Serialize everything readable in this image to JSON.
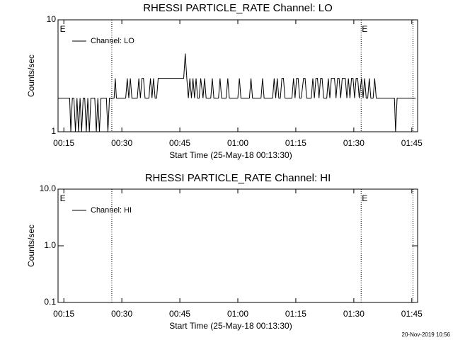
{
  "chart_data": [
    {
      "type": "line",
      "title": "RHESSI PARTICLE_RATE Channel: LO",
      "xlabel": "Start Time (25-May-18 00:13:30)",
      "ylabel": "Counts/sec",
      "log_y": true,
      "xlim": [
        13.5,
        106.5
      ],
      "ylim": [
        1,
        10
      ],
      "yticks": [
        1,
        10
      ],
      "xticks": [
        {
          "value": 15,
          "label": "00:15"
        },
        {
          "value": 30,
          "label": "00:30"
        },
        {
          "value": 45,
          "label": "00:45"
        },
        {
          "value": 60,
          "label": "01:00"
        },
        {
          "value": 75,
          "label": "01:15"
        },
        {
          "value": 90,
          "label": "01:30"
        },
        {
          "value": 105,
          "label": "01:45"
        }
      ],
      "vlines": [
        27.4,
        91.9,
        105.3
      ],
      "annotations": [
        {
          "x": 13.8,
          "text": "E"
        },
        {
          "x": 91.9,
          "text": "E"
        }
      ],
      "legend": "upper left",
      "series": [
        {
          "name": "Channel: LO",
          "color": "#000000",
          "x": [
            13.5,
            16.5,
            16.8,
            17.2,
            17.6,
            18,
            18.4,
            18.8,
            19.2,
            19.6,
            20,
            20.4,
            20.8,
            21.2,
            21.6,
            22,
            23,
            23.4,
            23.8,
            24.2,
            24.6,
            25,
            26,
            26.4,
            26.8,
            27.2,
            28,
            28.3,
            28.6,
            29,
            31,
            31.4,
            31.8,
            32.2,
            32.6,
            33,
            34,
            34.4,
            34.8,
            35.2,
            35.6,
            36,
            37,
            37.4,
            37.8,
            38.2,
            38.6,
            39,
            39.4,
            40,
            46,
            46.4,
            46.8,
            47.2,
            47.6,
            48,
            48.4,
            48.8,
            49.2,
            49.6,
            50,
            50.4,
            51,
            51.4,
            51.8,
            52.2,
            53,
            53.4,
            53.8,
            54.2,
            55,
            55.4,
            55.8,
            56.2,
            57,
            57.4,
            57.8,
            58.2,
            60,
            60.4,
            60.8,
            61.2,
            63,
            63.4,
            63.8,
            64.2,
            66,
            66.4,
            66.8,
            67.2,
            69,
            69.4,
            69.8,
            70.2,
            70.6,
            71,
            71.4,
            71.8,
            72.2,
            72.6,
            74,
            74.4,
            74.8,
            75.2,
            75.6,
            76,
            76.4,
            77,
            77.4,
            77.8,
            78.2,
            79,
            79.4,
            79.8,
            80.2,
            80.6,
            81,
            81.4,
            81.8,
            82.2,
            83,
            83.4,
            83.8,
            84.2,
            84.6,
            85,
            85.4,
            85.8,
            86.2,
            86.6,
            87,
            87.4,
            87.8,
            88.2,
            88.6,
            89,
            89.4,
            89.8,
            90.2,
            90.6,
            91,
            91.4,
            92,
            92.4,
            92.8,
            93.2,
            93.6,
            94,
            94.4,
            95,
            95.4,
            95.8,
            96.2,
            100.5,
            100.8,
            101.2,
            106
          ],
          "values": [
            2,
            2,
            1,
            2,
            2,
            1,
            2,
            1,
            2,
            1,
            2,
            2,
            1,
            2,
            1,
            2,
            2,
            1,
            2,
            1,
            2,
            2,
            2,
            1,
            2,
            2,
            2,
            3,
            2,
            2,
            2,
            3,
            2,
            3,
            2,
            2,
            2,
            3,
            2,
            3,
            3,
            2,
            2,
            3,
            2,
            3,
            2,
            2,
            3,
            3,
            3,
            5,
            3,
            2,
            3,
            2,
            3,
            2,
            3,
            2,
            2,
            3,
            2,
            3,
            2,
            2,
            2,
            3,
            2,
            2,
            2,
            3,
            2,
            2,
            2,
            3,
            2,
            2,
            2,
            3,
            2,
            2,
            2,
            3,
            2,
            2,
            2,
            3,
            2,
            2,
            2,
            3,
            2,
            3,
            2,
            2,
            3,
            3,
            2,
            2,
            2,
            3,
            2,
            3,
            3,
            2,
            2,
            3,
            3,
            2,
            2,
            2,
            3,
            2,
            3,
            3,
            2,
            3,
            3,
            2,
            2,
            3,
            2,
            3,
            3,
            3,
            2,
            3,
            3,
            2,
            3,
            3,
            3,
            2,
            3,
            2,
            3,
            3,
            2,
            3,
            3,
            2,
            3,
            2,
            3,
            2,
            2,
            3,
            2,
            2,
            3,
            2,
            2,
            2,
            1,
            2,
            2
          ]
        }
      ]
    },
    {
      "type": "line",
      "title": "RHESSI PARTICLE_RATE Channel: HI",
      "xlabel": "Start Time (25-May-18 00:13:30)",
      "ylabel": "Counts/sec",
      "log_y": true,
      "xlim": [
        13.5,
        106.5
      ],
      "ylim": [
        0.1,
        10
      ],
      "yticks": [
        0.1,
        {
          "value": 1,
          "label": "1.0"
        },
        {
          "value": 10,
          "label": "10.0"
        }
      ],
      "xticks": [
        {
          "value": 15,
          "label": "00:15"
        },
        {
          "value": 30,
          "label": "00:30"
        },
        {
          "value": 45,
          "label": "00:45"
        },
        {
          "value": 60,
          "label": "01:00"
        },
        {
          "value": 75,
          "label": "01:15"
        },
        {
          "value": 90,
          "label": "01:30"
        },
        {
          "value": 105,
          "label": "01:45"
        }
      ],
      "vlines": [
        27.4,
        91.9,
        105.3
      ],
      "annotations": [
        {
          "x": 13.8,
          "text": "E"
        },
        {
          "x": 91.9,
          "text": "E"
        }
      ],
      "legend": "upper left",
      "series": [
        {
          "name": "Channel: HI",
          "color": "#000000",
          "x": [],
          "values": []
        }
      ]
    }
  ],
  "footer": "20-Nov-2019 10:56"
}
